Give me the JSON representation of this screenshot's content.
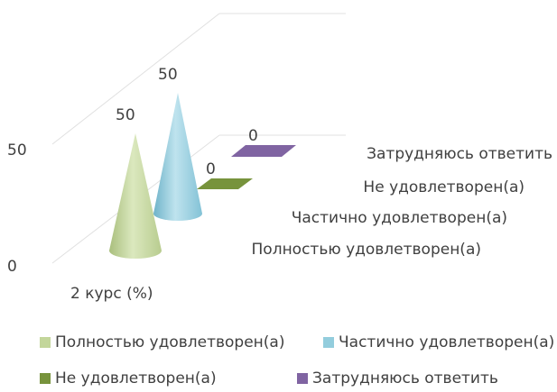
{
  "chart_data": {
    "type": "bar",
    "bar_shape": "3d-cone",
    "categories": [
      "2 курс (%)"
    ],
    "series": [
      {
        "name": "Полностью удовлетворен(а)",
        "values": [
          50
        ],
        "color": "#c3d69b"
      },
      {
        "name": "Частично удовлетворен(а)",
        "values": [
          50
        ],
        "color": "#93cddd"
      },
      {
        "name": "Не удовлетворен(а)",
        "values": [
          0
        ],
        "color": "#77933c"
      },
      {
        "name": "Затрудняюсь ответить",
        "values": [
          0
        ],
        "color": "#8064a2"
      }
    ],
    "ylim": [
      0,
      50
    ],
    "yticks": [
      "0",
      "50"
    ],
    "grid": true,
    "legend_position": "bottom"
  }
}
